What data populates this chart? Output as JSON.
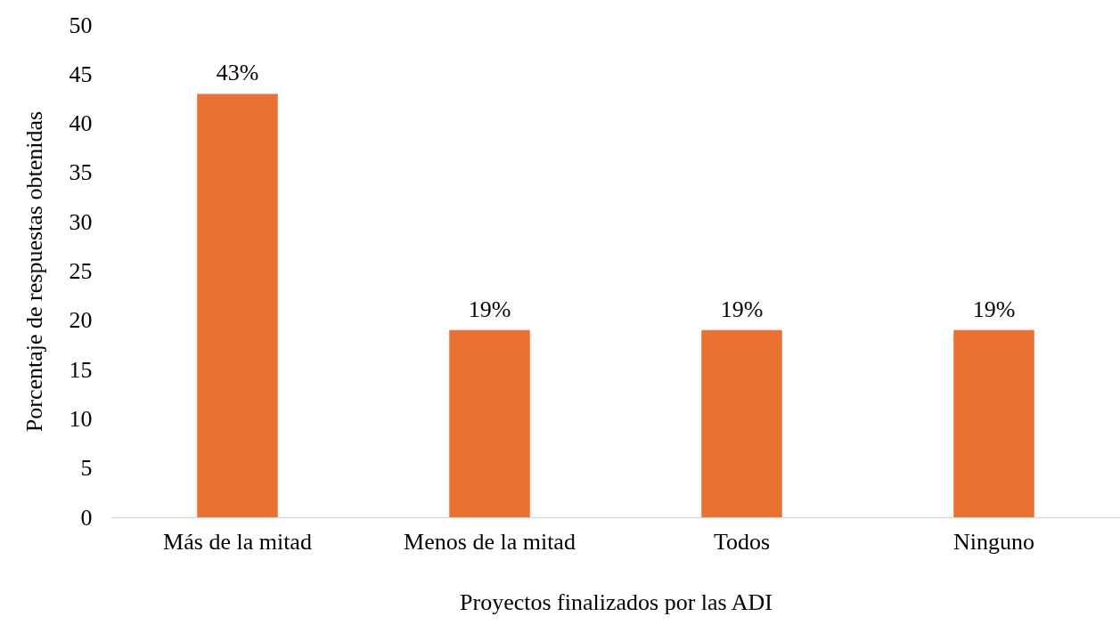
{
  "chart_data": {
    "type": "bar",
    "xlabel": "Proyectos finalizados por las ADI",
    "ylabel": "Porcentaje de respuestas obtenidas",
    "categories": [
      "Más de la mitad",
      "Menos de la mitad",
      "Todos",
      "Ninguno"
    ],
    "values": [
      43,
      19,
      19,
      19
    ],
    "value_labels": [
      "43%",
      "19%",
      "19%",
      "19%"
    ],
    "color": "#e97132",
    "ylim": [
      0,
      50
    ],
    "yticks": [
      0,
      5,
      10,
      15,
      20,
      25,
      30,
      35,
      40,
      45,
      50
    ],
    "grid": false
  }
}
